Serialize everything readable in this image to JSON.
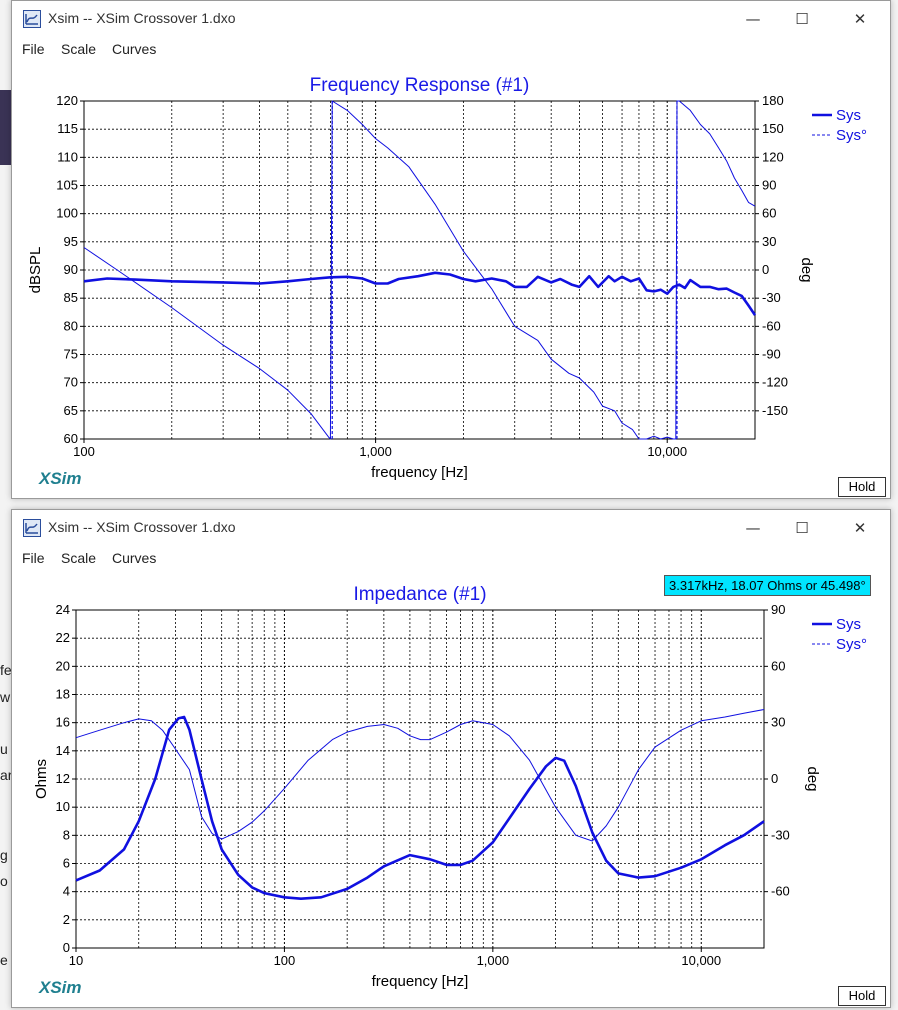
{
  "background": {
    "text_fragments": [
      "fe",
      "w",
      "u",
      "ar",
      "g",
      "o",
      "e"
    ],
    "band_color": "#3a3355"
  },
  "windows": [
    {
      "title": "Xsim -- XSim Crossover 1.dxo",
      "menu": [
        "File",
        "Scale",
        "Curves"
      ],
      "controls": {
        "minimize": "—",
        "maximize": "☐",
        "close": "✕"
      },
      "logo": "XSim",
      "hold_label": "Hold"
    },
    {
      "title": "Xsim -- XSim Crossover 1.dxo",
      "menu": [
        "File",
        "Scale",
        "Curves"
      ],
      "controls": {
        "minimize": "—",
        "maximize": "☐",
        "close": "✕"
      },
      "logo": "XSim",
      "hold_label": "Hold",
      "cursor_readout": "3.317kHz, 18.07 Ohms or 45.498°"
    }
  ],
  "colors": {
    "series": "#1010e0",
    "title": "#1a1ae6",
    "grid": "#000000"
  },
  "chart_data": [
    {
      "type": "line",
      "title": "Frequency Response (#1)",
      "xlabel": "frequency [Hz]",
      "ylabel": "dBSPL",
      "y2label": "deg",
      "x_scale": "log",
      "xlim": [
        100,
        20000
      ],
      "ylim": [
        60,
        120
      ],
      "y2lim": [
        -180,
        180
      ],
      "x_tick_labels": [
        "100",
        "1,000",
        "10,000"
      ],
      "x_tick_values": [
        100,
        1000,
        10000
      ],
      "y_ticks": [
        60,
        65,
        70,
        75,
        80,
        85,
        90,
        95,
        100,
        105,
        110,
        115,
        120
      ],
      "y2_ticks": [
        -150,
        -120,
        -90,
        -60,
        -30,
        0,
        30,
        60,
        90,
        120,
        150,
        180
      ],
      "legend": [
        "Sys",
        "Sys°"
      ],
      "legend_position": "right",
      "series": [
        {
          "name": "Sys",
          "axis": "left",
          "x": [
            100,
            120,
            150,
            200,
            300,
            400,
            500,
            600,
            700,
            800,
            900,
            1000,
            1100,
            1200,
            1400,
            1600,
            1800,
            2000,
            2200,
            2500,
            2800,
            3000,
            3300,
            3600,
            4000,
            4300,
            4700,
            5000,
            5400,
            5800,
            6300,
            6600,
            7000,
            7500,
            8000,
            8500,
            9000,
            9500,
            10000,
            10500,
            11000,
            11500,
            12000,
            13000,
            14000,
            15000,
            16000,
            17000,
            18000,
            19000,
            20000
          ],
          "values": [
            88.0,
            88.5,
            88.3,
            88.0,
            87.8,
            87.6,
            88.0,
            88.4,
            88.7,
            88.8,
            88.5,
            87.6,
            87.6,
            88.4,
            88.9,
            89.5,
            89.2,
            88.4,
            88.0,
            88.5,
            88.0,
            87.0,
            87.0,
            88.8,
            87.8,
            88.4,
            87.4,
            87.0,
            88.9,
            87.0,
            88.9,
            88.0,
            88.8,
            88.0,
            88.5,
            86.4,
            86.2,
            86.5,
            85.8,
            87.0,
            87.4,
            86.8,
            88.2,
            87.0,
            87.0,
            86.6,
            86.7,
            86.0,
            85.4,
            83.7,
            82.0
          ]
        },
        {
          "name": "Sys°",
          "axis": "right",
          "x": [
            100,
            130,
            200,
            300,
            400,
            500,
            600,
            690,
            700,
            710,
            800,
            900,
            1000,
            1100,
            1300,
            1600,
            2000,
            2500,
            3000,
            3600,
            4000,
            4600,
            5000,
            5600,
            6000,
            6600,
            7000,
            7600,
            8000,
            8500,
            9000,
            9500,
            10000,
            10500,
            10700,
            10800,
            11000,
            12000,
            13000,
            14000,
            15000,
            16000,
            17000,
            18000,
            19000,
            20000
          ],
          "values": [
            24,
            0,
            -40,
            -80,
            -105,
            -128,
            -153,
            -178,
            -180,
            180,
            170,
            155,
            140,
            130,
            110,
            70,
            20,
            -20,
            -60,
            -75,
            -95,
            -110,
            -115,
            -130,
            -145,
            -150,
            -163,
            -170,
            -180,
            -180,
            -177,
            -180,
            -178,
            -180,
            -180,
            180,
            180,
            170,
            155,
            145,
            130,
            116,
            98,
            85,
            72,
            68
          ]
        }
      ]
    },
    {
      "type": "line",
      "title": "Impedance (#1)",
      "xlabel": "frequency [Hz]",
      "ylabel": "Ohms",
      "y2label": "deg",
      "x_scale": "log",
      "xlim": [
        10,
        20000
      ],
      "ylim": [
        0,
        24
      ],
      "y2lim": [
        -90,
        90
      ],
      "x_tick_labels": [
        "10",
        "100",
        "1,000",
        "10,000"
      ],
      "x_tick_values": [
        10,
        100,
        1000,
        10000
      ],
      "y_ticks": [
        0,
        2,
        4,
        6,
        8,
        10,
        12,
        14,
        16,
        18,
        20,
        22,
        24
      ],
      "y2_ticks": [
        -60,
        -30,
        0,
        30,
        60,
        90
      ],
      "legend": [
        "Sys",
        "Sys°"
      ],
      "legend_position": "right",
      "series": [
        {
          "name": "Sys",
          "axis": "left",
          "x": [
            10,
            13,
            17,
            20,
            24,
            28,
            31,
            33,
            35,
            40,
            45,
            50,
            60,
            70,
            80,
            100,
            120,
            150,
            200,
            250,
            300,
            400,
            500,
            600,
            700,
            800,
            1000,
            1200,
            1500,
            1800,
            2000,
            2200,
            2500,
            3000,
            3500,
            4000,
            5000,
            6000,
            8000,
            10000,
            13000,
            16000,
            20000
          ],
          "values": [
            4.8,
            5.5,
            7.0,
            9.0,
            12.0,
            15.5,
            16.3,
            16.4,
            15.5,
            12.0,
            9.0,
            7.0,
            5.2,
            4.3,
            3.9,
            3.6,
            3.5,
            3.6,
            4.2,
            5.0,
            5.8,
            6.6,
            6.3,
            5.9,
            5.9,
            6.2,
            7.5,
            9.2,
            11.3,
            12.9,
            13.5,
            13.3,
            11.5,
            8.2,
            6.2,
            5.3,
            5.0,
            5.1,
            5.7,
            6.3,
            7.3,
            8.0,
            9.0
          ]
        },
        {
          "name": "Sys°",
          "axis": "right",
          "x": [
            10,
            13,
            17,
            20,
            23,
            26,
            30,
            35,
            40,
            45,
            50,
            60,
            70,
            80,
            100,
            130,
            170,
            200,
            250,
            300,
            350,
            400,
            450,
            500,
            600,
            700,
            800,
            1000,
            1200,
            1500,
            2000,
            2500,
            3000,
            3500,
            4000,
            5000,
            6000,
            8000,
            10000,
            13000,
            16000,
            20000
          ],
          "values": [
            22,
            26,
            30,
            32,
            31,
            26,
            16,
            5,
            -20,
            -29,
            -32,
            -28,
            -23,
            -17,
            -5,
            10,
            21,
            25,
            28,
            29,
            27,
            23,
            21,
            21,
            25,
            29,
            31,
            29,
            23,
            10,
            -15,
            -30,
            -33,
            -25,
            -15,
            5,
            17,
            26,
            31,
            33,
            35,
            37
          ]
        }
      ]
    }
  ]
}
